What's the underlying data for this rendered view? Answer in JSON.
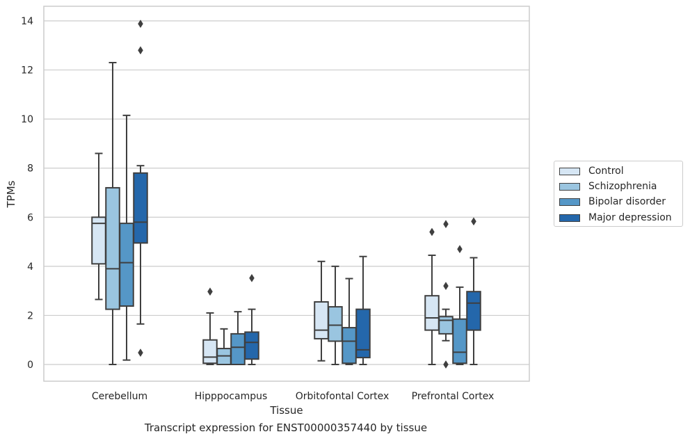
{
  "caption": "Transcript expression for ENST00000357440 by tissue",
  "chart_data": {
    "type": "boxplot",
    "xlabel": "Tissue",
    "ylabel": "TPMs",
    "ylim": [
      -0.65,
      14.6
    ],
    "yticks": [
      0,
      2,
      4,
      6,
      8,
      10,
      12,
      14
    ],
    "grid": "horizontal",
    "legend_placement": "right",
    "categories": [
      "Cerebellum",
      "Hipppocampus",
      "Orbitofontal Cortex",
      "Prefrontal Cortex"
    ],
    "series": [
      {
        "name": "Control",
        "color": "#d6e6f4",
        "boxes": [
          {
            "whislo": 2.65,
            "q1": 4.1,
            "med": 5.75,
            "q3": 6.0,
            "whishi": 8.6,
            "fliers": []
          },
          {
            "whislo": 0.0,
            "q1": 0.05,
            "med": 0.3,
            "q3": 1.0,
            "whishi": 2.1,
            "fliers": [
              2.97
            ]
          },
          {
            "whislo": 0.15,
            "q1": 1.05,
            "med": 1.4,
            "q3": 2.55,
            "whishi": 4.2,
            "fliers": []
          },
          {
            "whislo": 0.0,
            "q1": 1.4,
            "med": 1.9,
            "q3": 2.8,
            "whishi": 4.45,
            "fliers": [
              5.4
            ]
          }
        ]
      },
      {
        "name": "Schizophrenia",
        "color": "#9ac5e0",
        "boxes": [
          {
            "whislo": 0.0,
            "q1": 2.25,
            "med": 3.9,
            "q3": 7.2,
            "whishi": 12.3,
            "fliers": []
          },
          {
            "whislo": 0.0,
            "q1": 0.0,
            "med": 0.35,
            "q3": 0.65,
            "whishi": 1.45,
            "fliers": []
          },
          {
            "whislo": 0.0,
            "q1": 0.95,
            "med": 1.6,
            "q3": 2.35,
            "whishi": 4.0,
            "fliers": []
          },
          {
            "whislo": 0.97,
            "q1": 1.25,
            "med": 1.8,
            "q3": 1.95,
            "whishi": 2.25,
            "fliers": [
              5.72,
              3.2,
              0.0
            ]
          }
        ]
      },
      {
        "name": "Bipolar disorder",
        "color": "#5597c7",
        "boxes": [
          {
            "whislo": 0.18,
            "q1": 2.38,
            "med": 4.15,
            "q3": 5.75,
            "whishi": 10.15,
            "fliers": []
          },
          {
            "whislo": 0.0,
            "q1": 0.0,
            "med": 0.7,
            "q3": 1.25,
            "whishi": 2.15,
            "fliers": []
          },
          {
            "whislo": 0.0,
            "q1": 0.05,
            "med": 0.95,
            "q3": 1.5,
            "whishi": 3.5,
            "fliers": []
          },
          {
            "whislo": 0.0,
            "q1": 0.05,
            "med": 0.5,
            "q3": 1.85,
            "whishi": 3.15,
            "fliers": [
              4.7
            ]
          }
        ]
      },
      {
        "name": "Major depression",
        "color": "#2467ab",
        "boxes": [
          {
            "whislo": 1.65,
            "q1": 4.95,
            "med": 5.8,
            "q3": 7.8,
            "whishi": 8.1,
            "fliers": [
              13.88,
              12.8,
              0.48
            ]
          },
          {
            "whislo": 0.0,
            "q1": 0.22,
            "med": 0.9,
            "q3": 1.32,
            "whishi": 2.25,
            "fliers": [
              3.52
            ]
          },
          {
            "whislo": 0.0,
            "q1": 0.28,
            "med": 0.6,
            "q3": 2.25,
            "whishi": 4.4,
            "fliers": []
          },
          {
            "whislo": 0.0,
            "q1": 1.4,
            "med": 2.5,
            "q3": 2.97,
            "whishi": 4.35,
            "fliers": [
              5.83
            ]
          }
        ]
      }
    ]
  }
}
